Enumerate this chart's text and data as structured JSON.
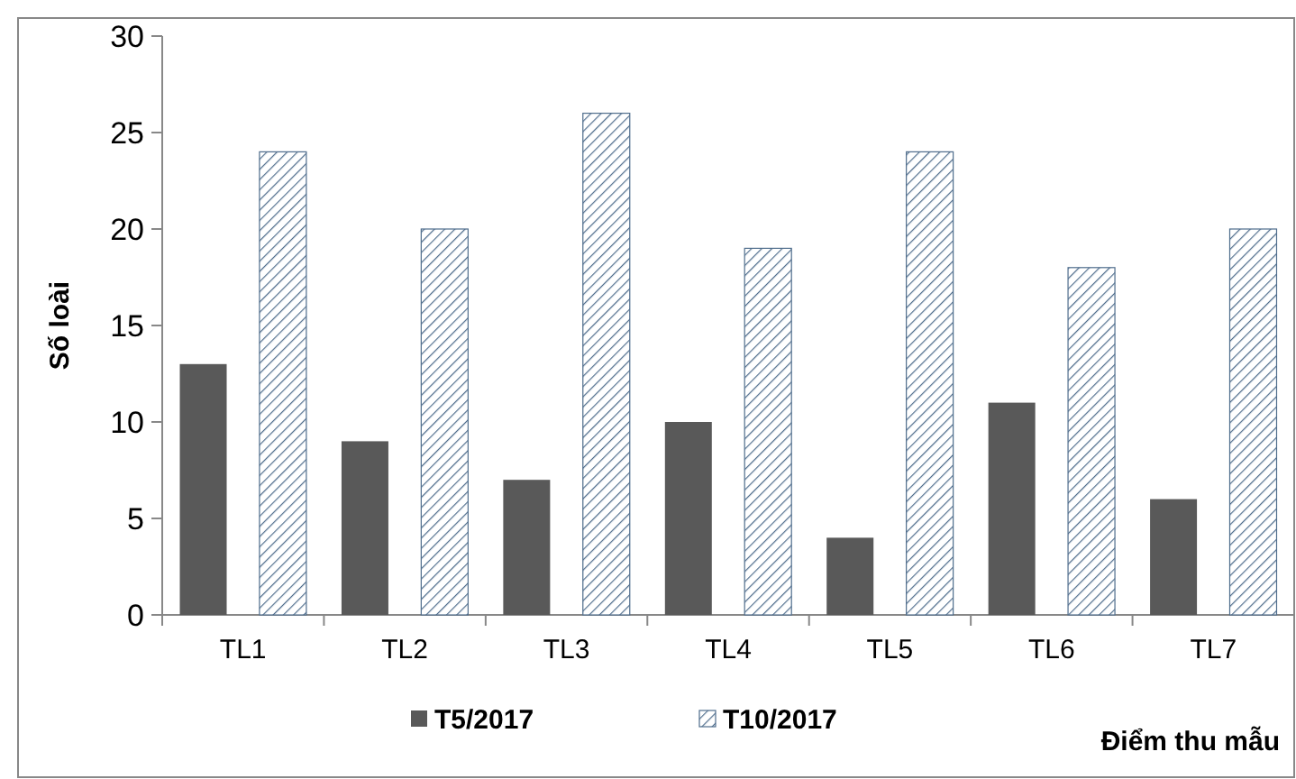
{
  "chart_data": {
    "type": "bar",
    "xlabel": "Điểm thu mẫu",
    "ylabel": "Số loài",
    "categories": [
      "TL1",
      "TL2",
      "TL3",
      "TL4",
      "TL5",
      "TL6",
      "TL7"
    ],
    "series": [
      {
        "name": "T5/2017",
        "color": "#595959",
        "values": [
          13,
          9,
          7,
          10,
          4,
          11,
          6
        ]
      },
      {
        "name": "T10/2017",
        "color": "#4f6d8c",
        "values": [
          24,
          20,
          26,
          19,
          24,
          18,
          20
        ]
      }
    ],
    "ylim": [
      0,
      30
    ],
    "yticks": [
      0,
      5,
      10,
      15,
      20,
      25,
      30
    ],
    "legend": "bottom"
  }
}
